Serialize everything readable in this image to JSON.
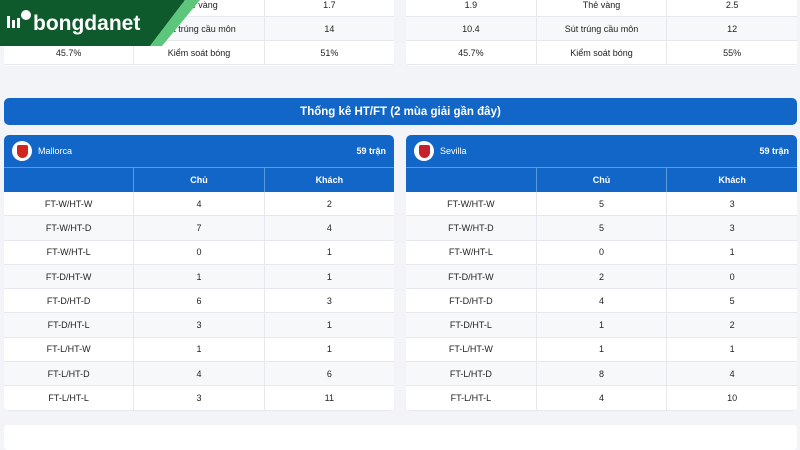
{
  "brand": {
    "name": "bongdanet"
  },
  "top_stats": {
    "left": [
      [
        "",
        "Thẻ vàng",
        "1.7"
      ],
      [
        "",
        "Sút trúng cầu môn",
        "14"
      ],
      [
        "45.7%",
        "Kiểm soát bóng",
        "51%"
      ]
    ],
    "right": [
      [
        "1.9",
        "Thẻ vàng",
        "2.5"
      ],
      [
        "10.4",
        "Sút trúng cầu môn",
        "12"
      ],
      [
        "45.7%",
        "Kiểm soát bóng",
        "55%"
      ]
    ]
  },
  "section_title": "Thống kê HT/FT (2 mùa giải gần đây)",
  "columns": {
    "home": "Chủ",
    "away": "Khách"
  },
  "teams": [
    {
      "name": "Mallorca",
      "matches": "59 trận",
      "color": "#d0261e",
      "rows": [
        [
          "FT-W/HT-W",
          "4",
          "2"
        ],
        [
          "FT-W/HT-D",
          "7",
          "4"
        ],
        [
          "FT-W/HT-L",
          "0",
          "1"
        ],
        [
          "FT-D/HT-W",
          "1",
          "1"
        ],
        [
          "FT-D/HT-D",
          "6",
          "3"
        ],
        [
          "FT-D/HT-L",
          "3",
          "1"
        ],
        [
          "FT-L/HT-W",
          "1",
          "1"
        ],
        [
          "FT-L/HT-D",
          "4",
          "6"
        ],
        [
          "FT-L/HT-L",
          "3",
          "11"
        ]
      ]
    },
    {
      "name": "Sevilla",
      "matches": "59 trận",
      "color": "#c8202a",
      "rows": [
        [
          "FT-W/HT-W",
          "5",
          "3"
        ],
        [
          "FT-W/HT-D",
          "5",
          "3"
        ],
        [
          "FT-W/HT-L",
          "0",
          "1"
        ],
        [
          "FT-D/HT-W",
          "2",
          "0"
        ],
        [
          "FT-D/HT-D",
          "4",
          "5"
        ],
        [
          "FT-D/HT-L",
          "1",
          "2"
        ],
        [
          "FT-L/HT-W",
          "1",
          "1"
        ],
        [
          "FT-L/HT-D",
          "8",
          "4"
        ],
        [
          "FT-L/HT-L",
          "4",
          "10"
        ]
      ]
    }
  ]
}
